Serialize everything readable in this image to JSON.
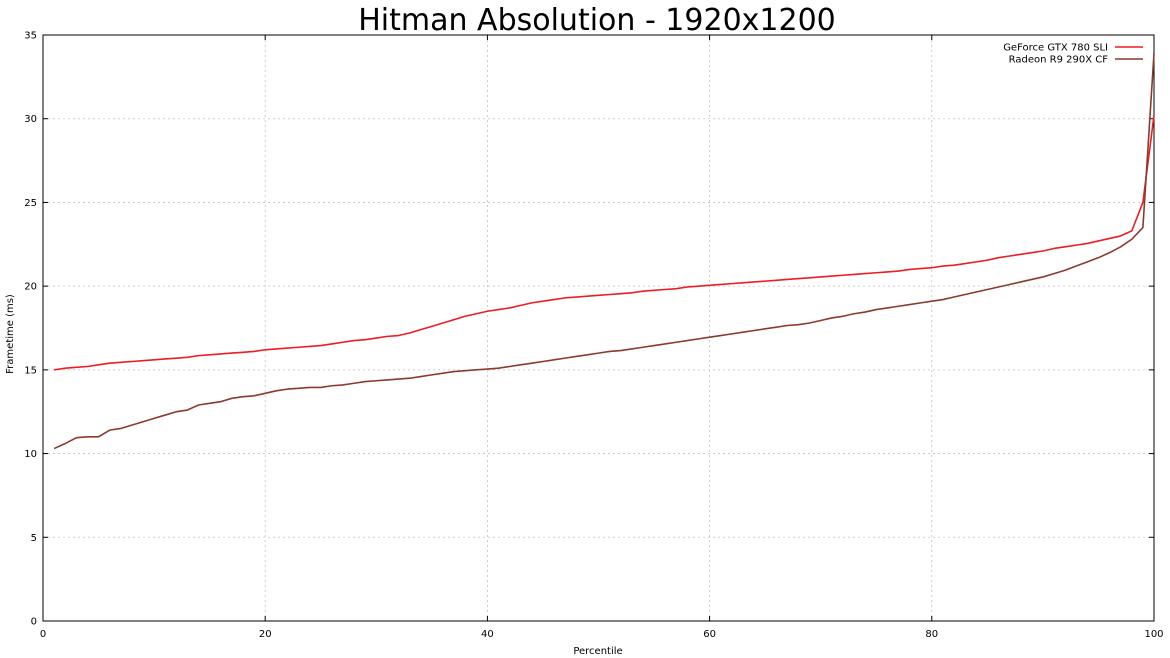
{
  "chart_data": {
    "type": "line",
    "title": "Hitman Absolution - 1920x1200",
    "xlabel": "Percentile",
    "ylabel": "Frametime (ms)",
    "xlim": [
      0,
      100
    ],
    "ylim": [
      0,
      35
    ],
    "x_ticks": [
      "0",
      "20",
      "40",
      "60",
      "80",
      "100"
    ],
    "y_ticks": [
      "0",
      "5",
      "10",
      "15",
      "20",
      "25",
      "30",
      "35"
    ],
    "grid": true,
    "legend_position": "top-right",
    "x": [
      1,
      2,
      3,
      4,
      5,
      6,
      7,
      8,
      9,
      10,
      11,
      12,
      13,
      14,
      15,
      16,
      17,
      18,
      19,
      20,
      21,
      22,
      23,
      24,
      25,
      26,
      27,
      28,
      29,
      30,
      31,
      32,
      33,
      34,
      35,
      36,
      37,
      38,
      39,
      40,
      41,
      42,
      43,
      44,
      45,
      46,
      47,
      48,
      49,
      50,
      51,
      52,
      53,
      54,
      55,
      56,
      57,
      58,
      59,
      60,
      61,
      62,
      63,
      64,
      65,
      66,
      67,
      68,
      69,
      70,
      71,
      72,
      73,
      74,
      75,
      76,
      77,
      78,
      79,
      80,
      81,
      82,
      83,
      84,
      85,
      86,
      87,
      88,
      89,
      90,
      91,
      92,
      93,
      94,
      95,
      96,
      97,
      98,
      99,
      100
    ],
    "series": [
      {
        "name": "GeForce GTX 780 SLI",
        "color": "#ee1c24",
        "values": [
          15.0,
          15.1,
          15.15,
          15.2,
          15.3,
          15.4,
          15.45,
          15.5,
          15.55,
          15.6,
          15.65,
          15.7,
          15.75,
          15.85,
          15.9,
          15.95,
          16.0,
          16.05,
          16.1,
          16.2,
          16.25,
          16.3,
          16.35,
          16.4,
          16.45,
          16.55,
          16.65,
          16.75,
          16.8,
          16.9,
          17.0,
          17.05,
          17.2,
          17.4,
          17.6,
          17.8,
          18.0,
          18.2,
          18.35,
          18.5,
          18.6,
          18.7,
          18.85,
          19.0,
          19.1,
          19.2,
          19.3,
          19.35,
          19.4,
          19.45,
          19.5,
          19.55,
          19.6,
          19.7,
          19.75,
          19.8,
          19.85,
          19.95,
          20.0,
          20.05,
          20.1,
          20.15,
          20.2,
          20.25,
          20.3,
          20.35,
          20.4,
          20.45,
          20.5,
          20.55,
          20.6,
          20.65,
          20.7,
          20.75,
          20.8,
          20.85,
          20.9,
          21.0,
          21.05,
          21.1,
          21.2,
          21.25,
          21.35,
          21.45,
          21.55,
          21.7,
          21.8,
          21.9,
          22.0,
          22.1,
          22.25,
          22.35,
          22.45,
          22.55,
          22.7,
          22.85,
          23.0,
          23.3,
          25.0,
          30.2
        ]
      },
      {
        "name": "Radeon R9 290X CF",
        "color": "#8b3a2e",
        "values": [
          10.3,
          10.6,
          10.95,
          11.0,
          11.0,
          11.4,
          11.5,
          11.7,
          11.9,
          12.1,
          12.3,
          12.5,
          12.6,
          12.9,
          13.0,
          13.1,
          13.3,
          13.4,
          13.45,
          13.6,
          13.75,
          13.85,
          13.9,
          13.95,
          13.95,
          14.05,
          14.1,
          14.2,
          14.3,
          14.35,
          14.4,
          14.45,
          14.5,
          14.6,
          14.7,
          14.8,
          14.9,
          14.95,
          15.0,
          15.05,
          15.1,
          15.2,
          15.3,
          15.4,
          15.5,
          15.6,
          15.7,
          15.8,
          15.9,
          16.0,
          16.1,
          16.15,
          16.25,
          16.35,
          16.45,
          16.55,
          16.65,
          16.75,
          16.85,
          16.95,
          17.05,
          17.15,
          17.25,
          17.35,
          17.45,
          17.55,
          17.65,
          17.7,
          17.8,
          17.95,
          18.1,
          18.2,
          18.35,
          18.45,
          18.6,
          18.7,
          18.8,
          18.9,
          19.0,
          19.1,
          19.2,
          19.35,
          19.5,
          19.65,
          19.8,
          19.95,
          20.1,
          20.25,
          20.4,
          20.55,
          20.75,
          20.95,
          21.2,
          21.45,
          21.7,
          22.0,
          22.35,
          22.8,
          23.5,
          33.9
        ]
      }
    ]
  }
}
